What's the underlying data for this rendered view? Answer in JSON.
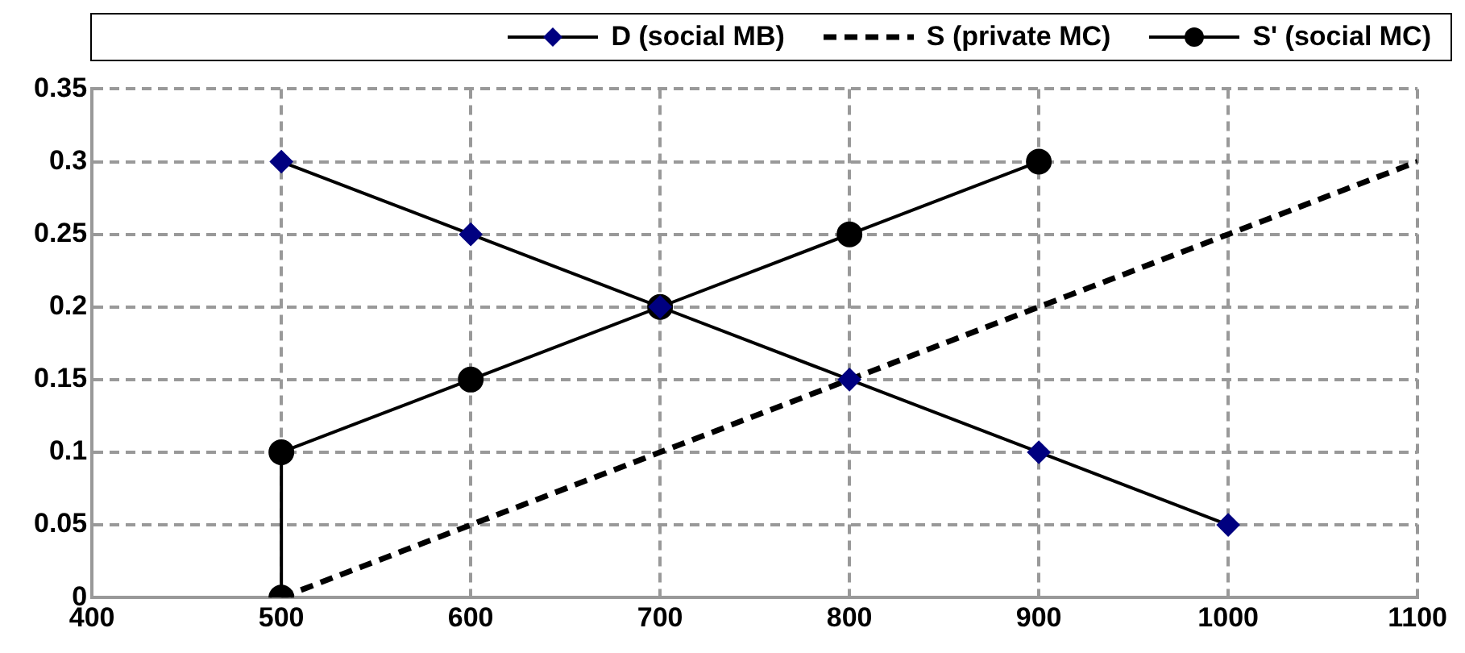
{
  "chart_data": {
    "type": "line",
    "xlim": [
      400,
      1100
    ],
    "xticks": [
      400,
      500,
      600,
      700,
      800,
      900,
      1000,
      1100
    ],
    "ylim": [
      0,
      0.35
    ],
    "yticks": [
      0,
      0.05,
      0.1,
      0.15,
      0.2,
      0.25,
      0.3,
      0.35
    ],
    "grid": true,
    "legend": "top",
    "series": [
      {
        "name": "D (social MB)",
        "color": "#000080",
        "marker": "diamond",
        "line_style": "solid",
        "x": [
          500,
          600,
          700,
          800,
          900,
          1000
        ],
        "values": [
          0.3,
          0.25,
          0.2,
          0.15,
          0.1,
          0.05
        ]
      },
      {
        "name": "S (private MC)",
        "color": "#000000",
        "line_style": "dashed",
        "x": [
          500,
          1100
        ],
        "values": [
          0,
          0.3
        ]
      },
      {
        "name": "S' (social MC)",
        "color": "#000000",
        "marker": "circle",
        "line_style": "solid",
        "x": [
          500,
          500,
          600,
          700,
          800,
          900
        ],
        "values": [
          0,
          0.1,
          0.15,
          0.2,
          0.25,
          0.3
        ]
      }
    ]
  }
}
